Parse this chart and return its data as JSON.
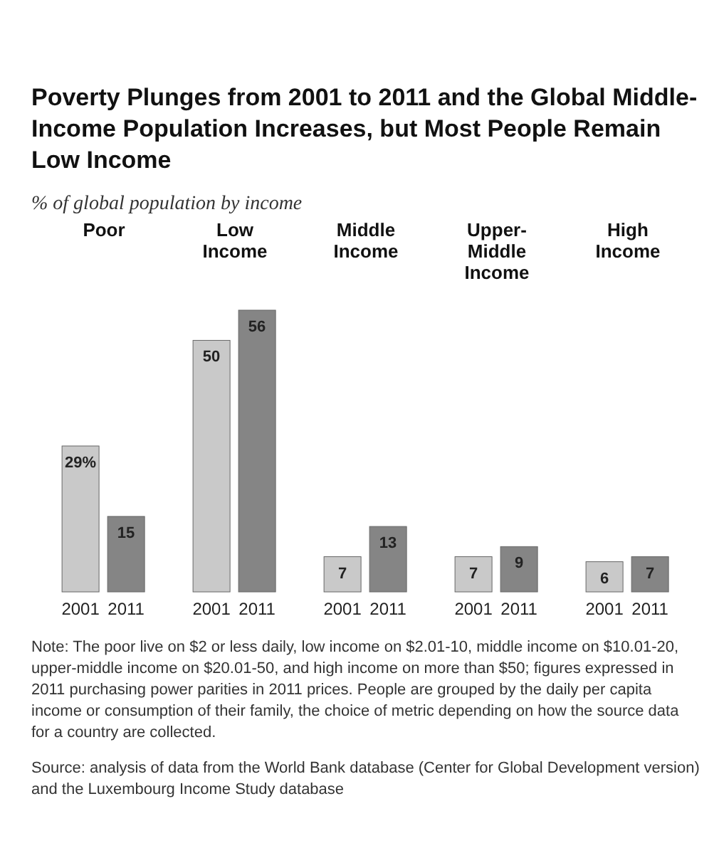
{
  "chart_data": {
    "type": "bar",
    "title": "Poverty Plunges from 2001 to 2011 and the Global Middle-Income Population Increases, but Most People Remain Low Income",
    "subtitle": "% of global population by income",
    "categories": [
      "Poor",
      "Low Income",
      "Middle Income",
      "Upper-Middle Income",
      "High Income"
    ],
    "series": [
      {
        "name": "2001",
        "color": "#c9c9c9",
        "values": [
          29,
          50,
          7,
          7,
          6
        ],
        "value_labels": [
          "29%",
          "50",
          "7",
          "7",
          "6"
        ]
      },
      {
        "name": "2011",
        "color": "#858585",
        "values": [
          15,
          56,
          13,
          9,
          7
        ],
        "value_labels": [
          "15",
          "56",
          "13",
          "9",
          "7"
        ]
      }
    ],
    "annotations": [
      "Note: The poor live on $2 or less daily, low income on $2.01-10, middle income on $10.01-20, upper-middle income on $20.01-50, and high income on more than $50; figures expressed in 2011 purchasing power parities in 2011 prices. People are grouped by the daily per capita income or consumption of their family, the choice of metric depending on how the source data for a country are collected.",
      "Source: analysis of data from the World Bank database (Center for Global Development version) and the Luxembourg Income Study database"
    ]
  }
}
